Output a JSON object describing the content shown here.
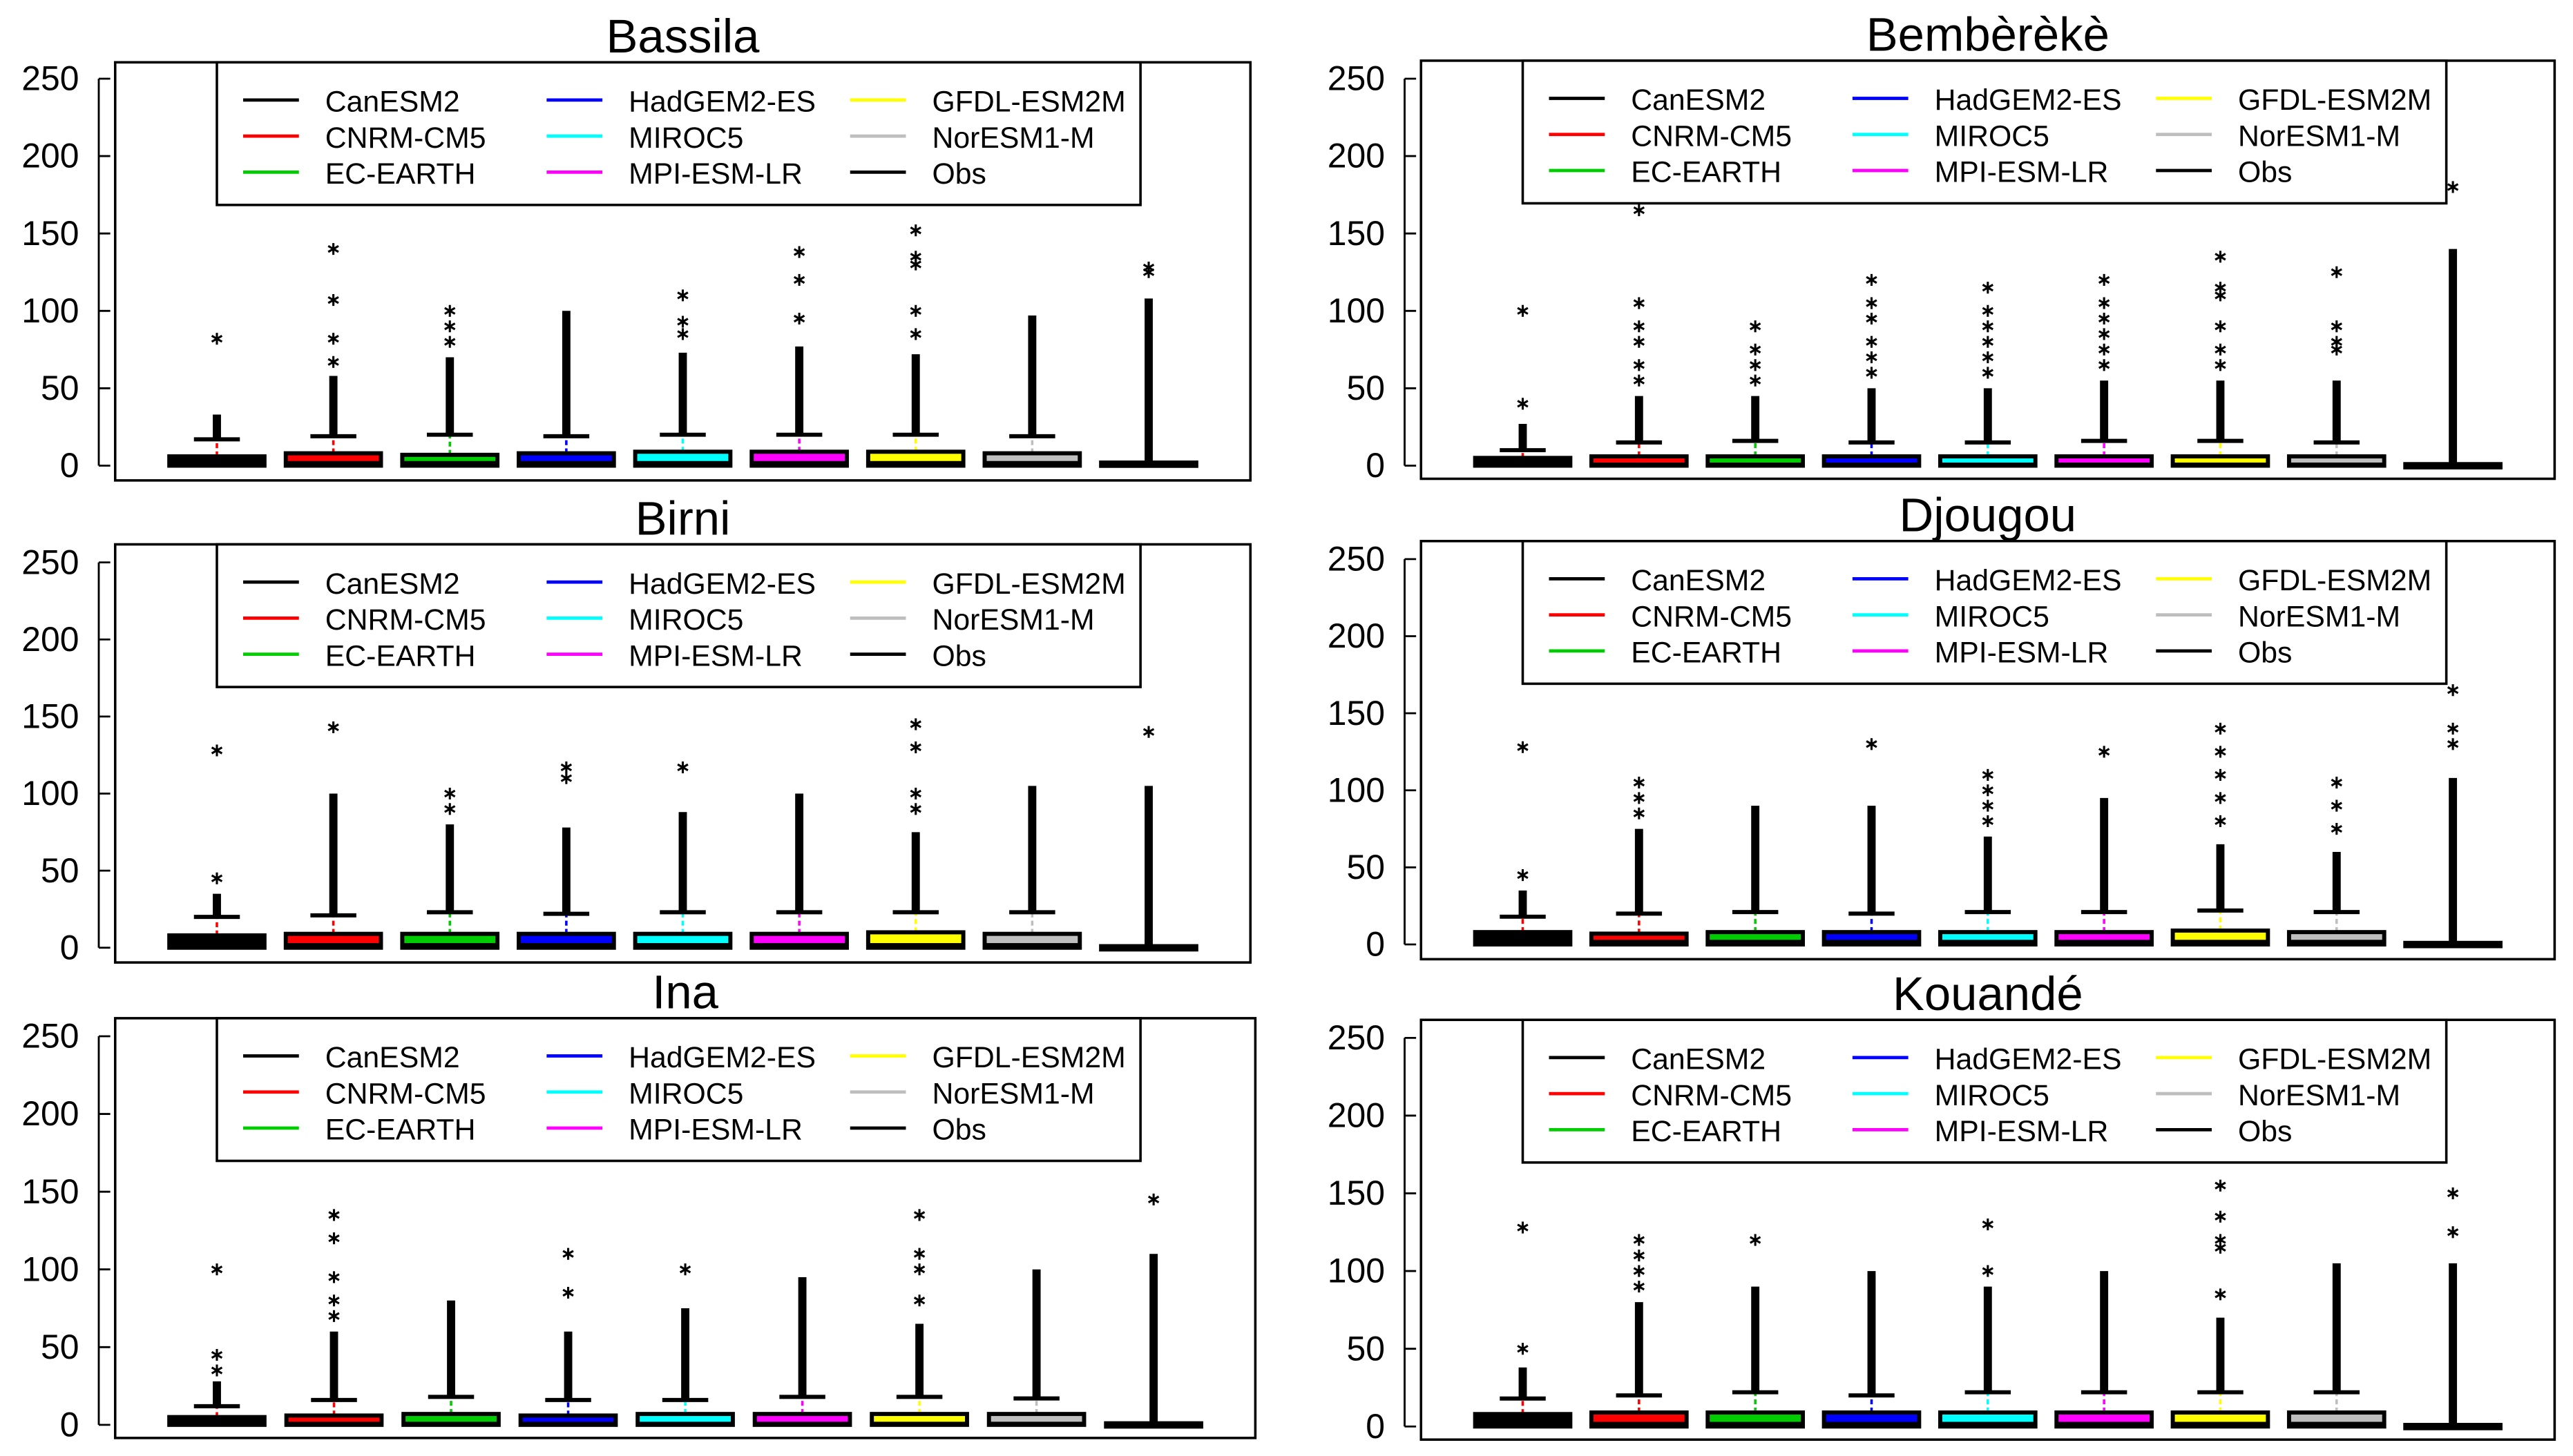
{
  "chart_data": [
    {
      "type": "box",
      "title": "Bassila",
      "ylim": [
        0,
        250
      ],
      "yticks": [
        "0",
        "50",
        "100",
        "150",
        "200",
        "250"
      ],
      "boxes": [
        {
          "name": "CanESM2",
          "q1": 0,
          "median": 1,
          "q3": 6,
          "whisker": 17,
          "dense_to": 33,
          "outliers": [
            82
          ]
        },
        {
          "name": "CNRM-CM5",
          "q1": 0,
          "median": 3,
          "q3": 8,
          "whisker": 19,
          "dense_to": 58,
          "outliers": [
            67,
            82,
            107,
            140
          ]
        },
        {
          "name": "EC-EARTH",
          "q1": 0,
          "median": 3,
          "q3": 7,
          "whisker": 20,
          "dense_to": 70,
          "outliers": [
            80,
            90,
            100
          ]
        },
        {
          "name": "HadGEM2-ES",
          "q1": 0,
          "median": 3,
          "q3": 8,
          "whisker": 19,
          "dense_to": 100,
          "outliers": []
        },
        {
          "name": "MIROC5",
          "q1": 0,
          "median": 3,
          "q3": 9,
          "whisker": 20,
          "dense_to": 73,
          "outliers": [
            85,
            93,
            110
          ]
        },
        {
          "name": "MPI-ESM-LR",
          "q1": 0,
          "median": 3,
          "q3": 9,
          "whisker": 20,
          "dense_to": 77,
          "outliers": [
            95,
            120,
            138
          ]
        },
        {
          "name": "GFDL-ESM2M",
          "q1": 0,
          "median": 3,
          "q3": 9,
          "whisker": 20,
          "dense_to": 72,
          "outliers": [
            85,
            100,
            130,
            135,
            152
          ]
        },
        {
          "name": "NorESM1-M",
          "q1": 0,
          "median": 3,
          "q3": 8,
          "whisker": 19,
          "dense_to": 97,
          "outliers": []
        },
        {
          "name": "Obs",
          "q1": 0,
          "median": 0,
          "q3": 2,
          "whisker": 2,
          "dense_to": 108,
          "outliers": [
            125,
            128
          ]
        }
      ]
    },
    {
      "type": "box",
      "title": "Bembèrèkè",
      "ylim": [
        0,
        250
      ],
      "yticks": [
        "0",
        "50",
        "100",
        "150",
        "200",
        "250"
      ],
      "boxes": [
        {
          "name": "CanESM2",
          "q1": 0,
          "median": 1,
          "q3": 5,
          "whisker": 10,
          "dense_to": 27,
          "outliers": [
            40,
            100
          ]
        },
        {
          "name": "CNRM-CM5",
          "q1": 0,
          "median": 2,
          "q3": 6,
          "whisker": 15,
          "dense_to": 45,
          "outliers": [
            55,
            65,
            80,
            90,
            105,
            165
          ]
        },
        {
          "name": "EC-EARTH",
          "q1": 0,
          "median": 2,
          "q3": 6,
          "whisker": 16,
          "dense_to": 45,
          "outliers": [
            55,
            65,
            75,
            90
          ]
        },
        {
          "name": "HadGEM2-ES",
          "q1": 0,
          "median": 2,
          "q3": 6,
          "whisker": 15,
          "dense_to": 50,
          "outliers": [
            60,
            70,
            80,
            95,
            105,
            120
          ]
        },
        {
          "name": "MIROC5",
          "q1": 0,
          "median": 2,
          "q3": 6,
          "whisker": 15,
          "dense_to": 50,
          "outliers": [
            60,
            70,
            80,
            90,
            100,
            115
          ]
        },
        {
          "name": "MPI-ESM-LR",
          "q1": 0,
          "median": 2,
          "q3": 6,
          "whisker": 16,
          "dense_to": 55,
          "outliers": [
            65,
            75,
            85,
            95,
            105,
            120
          ]
        },
        {
          "name": "GFDL-ESM2M",
          "q1": 0,
          "median": 2,
          "q3": 6,
          "whisker": 16,
          "dense_to": 55,
          "outliers": [
            65,
            75,
            90,
            110,
            115,
            135
          ]
        },
        {
          "name": "NorESM1-M",
          "q1": 0,
          "median": 2,
          "q3": 6,
          "whisker": 15,
          "dense_to": 55,
          "outliers": [
            75,
            80,
            90,
            125
          ]
        },
        {
          "name": "Obs",
          "q1": 0,
          "median": 0,
          "q3": 1,
          "whisker": 1,
          "dense_to": 140,
          "outliers": [
            180
          ]
        }
      ]
    },
    {
      "type": "box",
      "title": "Birni",
      "ylim": [
        0,
        250
      ],
      "yticks": [
        "0",
        "50",
        "100",
        "150",
        "200",
        "250"
      ],
      "boxes": [
        {
          "name": "CanESM2",
          "q1": 0,
          "median": 1,
          "q3": 8,
          "whisker": 20,
          "dense_to": 35,
          "outliers": [
            45,
            128
          ]
        },
        {
          "name": "CNRM-CM5",
          "q1": 0,
          "median": 3,
          "q3": 9,
          "whisker": 21,
          "dense_to": 100,
          "outliers": [
            143
          ]
        },
        {
          "name": "EC-EARTH",
          "q1": 0,
          "median": 3,
          "q3": 9,
          "whisker": 23,
          "dense_to": 80,
          "outliers": [
            90,
            100
          ]
        },
        {
          "name": "HadGEM2-ES",
          "q1": 0,
          "median": 3,
          "q3": 9,
          "whisker": 22,
          "dense_to": 78,
          "outliers": [
            110,
            117
          ]
        },
        {
          "name": "MIROC5",
          "q1": 0,
          "median": 3,
          "q3": 9,
          "whisker": 23,
          "dense_to": 88,
          "outliers": [
            117
          ]
        },
        {
          "name": "MPI-ESM-LR",
          "q1": 0,
          "median": 3,
          "q3": 9,
          "whisker": 23,
          "dense_to": 100,
          "outliers": []
        },
        {
          "name": "GFDL-ESM2M",
          "q1": 0,
          "median": 3,
          "q3": 10,
          "whisker": 23,
          "dense_to": 75,
          "outliers": [
            90,
            100,
            130,
            145
          ]
        },
        {
          "name": "NorESM1-M",
          "q1": 0,
          "median": 3,
          "q3": 9,
          "whisker": 23,
          "dense_to": 105,
          "outliers": []
        },
        {
          "name": "Obs",
          "q1": 0,
          "median": 0,
          "q3": 1,
          "whisker": 1,
          "dense_to": 105,
          "outliers": [
            140
          ]
        }
      ]
    },
    {
      "type": "box",
      "title": "Djougou",
      "ylim": [
        0,
        250
      ],
      "yticks": [
        "0",
        "50",
        "100",
        "150",
        "200",
        "250"
      ],
      "boxes": [
        {
          "name": "CanESM2",
          "q1": 0,
          "median": 1,
          "q3": 8,
          "whisker": 18,
          "dense_to": 35,
          "outliers": [
            45,
            128
          ]
        },
        {
          "name": "CNRM-CM5",
          "q1": 0,
          "median": 3,
          "q3": 7,
          "whisker": 20,
          "dense_to": 75,
          "outliers": [
            85,
            95,
            105
          ]
        },
        {
          "name": "EC-EARTH",
          "q1": 0,
          "median": 3,
          "q3": 8,
          "whisker": 21,
          "dense_to": 90,
          "outliers": []
        },
        {
          "name": "HadGEM2-ES",
          "q1": 0,
          "median": 3,
          "q3": 8,
          "whisker": 20,
          "dense_to": 90,
          "outliers": [
            130
          ]
        },
        {
          "name": "MIROC5",
          "q1": 0,
          "median": 3,
          "q3": 8,
          "whisker": 21,
          "dense_to": 70,
          "outliers": [
            80,
            90,
            100,
            110
          ]
        },
        {
          "name": "MPI-ESM-LR",
          "q1": 0,
          "median": 3,
          "q3": 8,
          "whisker": 21,
          "dense_to": 95,
          "outliers": [
            125
          ]
        },
        {
          "name": "GFDL-ESM2M",
          "q1": 0,
          "median": 3,
          "q3": 9,
          "whisker": 22,
          "dense_to": 65,
          "outliers": [
            80,
            95,
            110,
            125,
            140
          ]
        },
        {
          "name": "NorESM1-M",
          "q1": 0,
          "median": 3,
          "q3": 8,
          "whisker": 21,
          "dense_to": 60,
          "outliers": [
            75,
            90,
            105
          ]
        },
        {
          "name": "Obs",
          "q1": 0,
          "median": 0,
          "q3": 1,
          "whisker": 1,
          "dense_to": 108,
          "outliers": [
            130,
            140,
            165
          ]
        }
      ]
    },
    {
      "type": "box",
      "title": "Ina",
      "ylim": [
        0,
        250
      ],
      "yticks": [
        "0",
        "50",
        "100",
        "150",
        "200",
        "250"
      ],
      "boxes": [
        {
          "name": "CanESM2",
          "q1": 0,
          "median": 1,
          "q3": 5,
          "whisker": 12,
          "dense_to": 28,
          "outliers": [
            35,
            45,
            100
          ]
        },
        {
          "name": "CNRM-CM5",
          "q1": 0,
          "median": 2,
          "q3": 6,
          "whisker": 16,
          "dense_to": 60,
          "outliers": [
            70,
            80,
            95,
            120,
            135
          ]
        },
        {
          "name": "EC-EARTH",
          "q1": 0,
          "median": 2,
          "q3": 7,
          "whisker": 18,
          "dense_to": 80,
          "outliers": []
        },
        {
          "name": "HadGEM2-ES",
          "q1": 0,
          "median": 2,
          "q3": 6,
          "whisker": 16,
          "dense_to": 60,
          "outliers": [
            85,
            110
          ]
        },
        {
          "name": "MIROC5",
          "q1": 0,
          "median": 2,
          "q3": 7,
          "whisker": 16,
          "dense_to": 75,
          "outliers": [
            100
          ]
        },
        {
          "name": "MPI-ESM-LR",
          "q1": 0,
          "median": 2,
          "q3": 7,
          "whisker": 18,
          "dense_to": 95,
          "outliers": []
        },
        {
          "name": "GFDL-ESM2M",
          "q1": 0,
          "median": 2,
          "q3": 7,
          "whisker": 18,
          "dense_to": 65,
          "outliers": [
            80,
            100,
            110,
            135
          ]
        },
        {
          "name": "NorESM1-M",
          "q1": 0,
          "median": 2,
          "q3": 7,
          "whisker": 17,
          "dense_to": 100,
          "outliers": []
        },
        {
          "name": "Obs",
          "q1": 0,
          "median": 0,
          "q3": 1,
          "whisker": 1,
          "dense_to": 110,
          "outliers": [
            145
          ]
        }
      ]
    },
    {
      "type": "box",
      "title": "Kouandé",
      "ylim": [
        0,
        250
      ],
      "yticks": [
        "0",
        "50",
        "100",
        "150",
        "200",
        "250"
      ],
      "boxes": [
        {
          "name": "CanESM2",
          "q1": 0,
          "median": 1,
          "q3": 8,
          "whisker": 18,
          "dense_to": 38,
          "outliers": [
            50,
            128
          ]
        },
        {
          "name": "CNRM-CM5",
          "q1": 0,
          "median": 3,
          "q3": 9,
          "whisker": 20,
          "dense_to": 80,
          "outliers": [
            90,
            100,
            110,
            120
          ]
        },
        {
          "name": "EC-EARTH",
          "q1": 0,
          "median": 3,
          "q3": 9,
          "whisker": 22,
          "dense_to": 90,
          "outliers": [
            120
          ]
        },
        {
          "name": "HadGEM2-ES",
          "q1": 0,
          "median": 3,
          "q3": 9,
          "whisker": 20,
          "dense_to": 100,
          "outliers": []
        },
        {
          "name": "MIROC5",
          "q1": 0,
          "median": 3,
          "q3": 9,
          "whisker": 22,
          "dense_to": 90,
          "outliers": [
            100,
            130
          ]
        },
        {
          "name": "MPI-ESM-LR",
          "q1": 0,
          "median": 3,
          "q3": 9,
          "whisker": 22,
          "dense_to": 100,
          "outliers": []
        },
        {
          "name": "GFDL-ESM2M",
          "q1": 0,
          "median": 3,
          "q3": 9,
          "whisker": 22,
          "dense_to": 70,
          "outliers": [
            85,
            115,
            120,
            135,
            155
          ]
        },
        {
          "name": "NorESM1-M",
          "q1": 0,
          "median": 3,
          "q3": 9,
          "whisker": 22,
          "dense_to": 105,
          "outliers": []
        },
        {
          "name": "Obs",
          "q1": 0,
          "median": 0,
          "q3": 1,
          "whisker": 1,
          "dense_to": 105,
          "outliers": [
            125,
            150
          ]
        }
      ]
    }
  ],
  "legend": [
    {
      "label": "CanESM2",
      "color": "#000000"
    },
    {
      "label": "CNRM-CM5",
      "color": "#ff0000"
    },
    {
      "label": "EC-EARTH",
      "color": "#00cd00"
    },
    {
      "label": "HadGEM2-ES",
      "color": "#0000ff"
    },
    {
      "label": "MIROC5",
      "color": "#00ffff"
    },
    {
      "label": "MPI-ESM-LR",
      "color": "#ff00ff"
    },
    {
      "label": "GFDL-ESM2M",
      "color": "#ffff00"
    },
    {
      "label": "NorESM1-M",
      "color": "#bebebe"
    },
    {
      "label": "Obs",
      "color": "#000000"
    }
  ],
  "outlier_marker": "*"
}
